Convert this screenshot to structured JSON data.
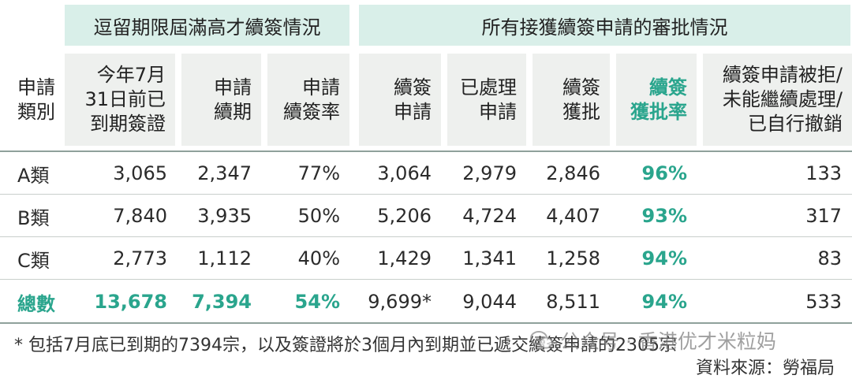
{
  "group_headers": {
    "left": "逗留期限屆滿高才續簽情況",
    "right": "所有接獲續簽申請的審批情況"
  },
  "columns": [
    {
      "lines": [
        "申請",
        "類別"
      ]
    },
    {
      "lines": [
        "今年7月",
        "31日前已",
        "到期簽證"
      ]
    },
    {
      "lines": [
        "申請",
        "續期"
      ]
    },
    {
      "lines": [
        "申請",
        "續簽率"
      ]
    },
    {
      "lines": [
        "續簽",
        "申請"
      ]
    },
    {
      "lines": [
        "已處理",
        "申請"
      ]
    },
    {
      "lines": [
        "續簽",
        "獲批"
      ]
    },
    {
      "lines": [
        "續簽",
        "獲批率"
      ]
    },
    {
      "lines": [
        "續簽申請被拒/",
        "未能繼續處理/",
        "已自行撤銷"
      ]
    }
  ],
  "rows": [
    [
      "A類",
      "3,065",
      "2,347",
      "77%",
      "3,064",
      "2,979",
      "2,846",
      "96%",
      "133"
    ],
    [
      "B類",
      "7,840",
      "3,935",
      "50%",
      "5,206",
      "4,724",
      "4,407",
      "93%",
      "317"
    ],
    [
      "C類",
      "2,773",
      "1,112",
      "40%",
      "1,429",
      "1,341",
      "1,258",
      "94%",
      "83"
    ]
  ],
  "total_row": [
    "總數",
    "13,678",
    "7,394",
    "54%",
    "9,699*",
    "9,044",
    "8,511",
    "94%",
    "533"
  ],
  "footnote": "* 包括7月底已到期的7394宗，以及簽證將於3個月內到期並已遞交續簽申請的2305宗",
  "source": "資料來源：勞福局",
  "watermark": "公众号 · 香港优才米粒妈",
  "colors": {
    "accent": "#2aa58d",
    "group_bg": "#d9efe9",
    "header_bg": "#eef0ee"
  },
  "icons": {
    "watermark": "wechat-icon"
  }
}
